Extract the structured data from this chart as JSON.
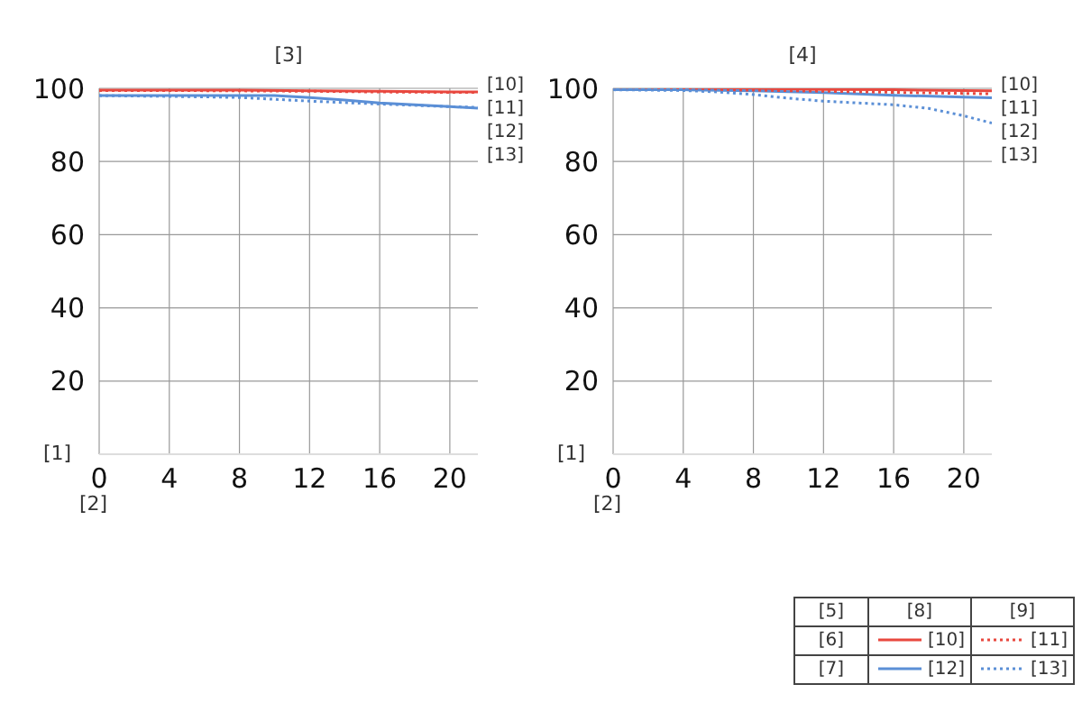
{
  "chart_data": [
    {
      "type": "line",
      "title": "[3]",
      "xlabel": "[2]",
      "ylabel": "[1]",
      "xlim": [
        0,
        21.6
      ],
      "xticks": [
        0,
        4,
        8,
        12,
        16,
        20
      ],
      "ylim": [
        0,
        100
      ],
      "yticks": [
        {
          "value": 0,
          "label": null
        },
        20,
        40,
        60,
        80,
        100
      ],
      "grid": true,
      "marker": "none",
      "legend": false,
      "series": [
        {
          "name": "[10]",
          "color": "#e8483f",
          "line_style": "solid",
          "x": [
            0,
            4,
            8,
            12,
            16,
            20,
            21.6
          ],
          "values": [
            99.5,
            99.5,
            99.5,
            99.3,
            99.2,
            99,
            99
          ]
        },
        {
          "name": "[11]",
          "color": "#e8483f",
          "line_style": "dotted",
          "x": [
            0,
            4,
            8,
            12,
            16,
            20,
            21.6
          ],
          "values": [
            99.4,
            99.4,
            99.3,
            99.2,
            99,
            98.9,
            98.9
          ]
        },
        {
          "name": "[12]",
          "color": "#5b8fd6",
          "line_style": "solid",
          "x": [
            0,
            4,
            8,
            10,
            12,
            14,
            16,
            18,
            20,
            21.6
          ],
          "values": [
            98,
            98,
            98,
            98,
            97.5,
            96.8,
            96,
            95.5,
            95,
            94.6
          ]
        },
        {
          "name": "[13]",
          "color": "#5b8fd6",
          "line_style": "dotted",
          "x": [
            0,
            4,
            8,
            12,
            16,
            20,
            21.6
          ],
          "values": [
            98,
            97.8,
            97.5,
            96.5,
            95.7,
            95,
            94.8
          ]
        }
      ]
    },
    {
      "type": "line",
      "title": "[4]",
      "xlabel": "[2]",
      "ylabel": "[1]",
      "xlim": [
        0,
        21.6
      ],
      "xticks": [
        0,
        4,
        8,
        12,
        16,
        20
      ],
      "ylim": [
        0,
        100
      ],
      "yticks": [
        {
          "value": 0,
          "label": null
        },
        20,
        40,
        60,
        80,
        100
      ],
      "grid": true,
      "marker": "none",
      "legend": "bottom right",
      "legend_title": "[5]",
      "annotations": [
        "[6]",
        "[7]",
        "[8]",
        "[9]"
      ],
      "series": [
        {
          "name": "[10]",
          "color": "#e8483f",
          "line_style": "solid",
          "x": [
            0,
            4,
            8,
            12,
            16,
            20,
            21.6
          ],
          "values": [
            99.8,
            99.8,
            99.8,
            99.7,
            99.6,
            99.4,
            99.3
          ]
        },
        {
          "name": "[11]",
          "color": "#e8483f",
          "line_style": "dotted",
          "x": [
            0,
            4,
            8,
            12,
            16,
            20,
            21.6
          ],
          "values": [
            99.8,
            99.7,
            99.5,
            99.2,
            98.9,
            98.6,
            98.5
          ]
        },
        {
          "name": "[12]",
          "color": "#5b8fd6",
          "line_style": "solid",
          "x": [
            0,
            4,
            8,
            12,
            16,
            20,
            21.6
          ],
          "values": [
            99.6,
            99.6,
            99.3,
            98.8,
            98.1,
            97.6,
            97.4
          ]
        },
        {
          "name": "[13]",
          "color": "#5b8fd6",
          "line_style": "dotted",
          "x": [
            0,
            4,
            6,
            8,
            10,
            12,
            14,
            16,
            18,
            20,
            21.6
          ],
          "values": [
            99.6,
            99.4,
            99,
            98.3,
            97.3,
            96.5,
            96,
            95.5,
            94.5,
            92.5,
            90.5
          ]
        }
      ]
    }
  ]
}
